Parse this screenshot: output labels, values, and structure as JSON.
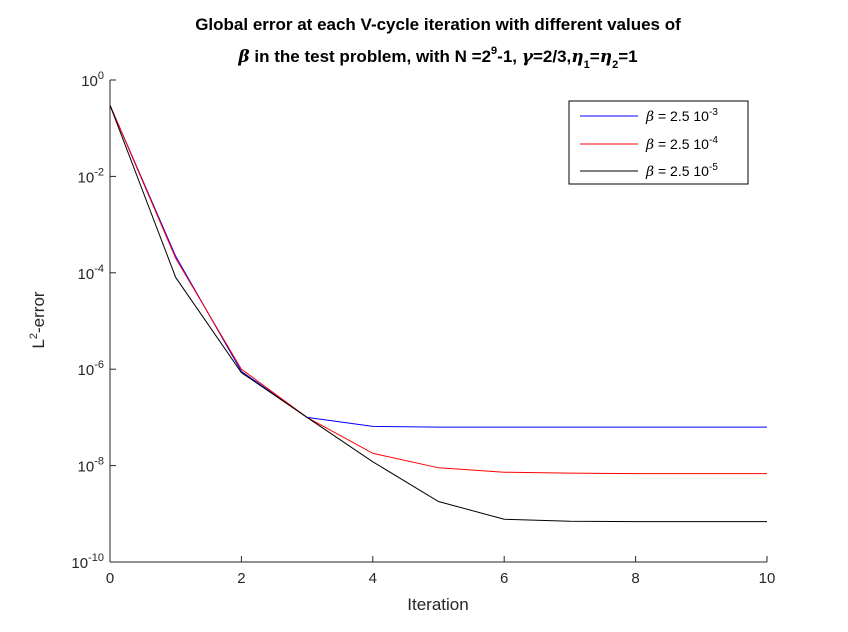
{
  "chart_data": {
    "type": "line",
    "title_line1": "Global error at each V-cycle iteration with different values of",
    "title_line2_parts": {
      "beta": "β",
      "a": " in the test problem, with N =2",
      "exp9": "9",
      "b": "-1, ",
      "gamma": "γ",
      "c": "=2/3,",
      "eta1": "η",
      "sub1": "1",
      "eq": "=",
      "eta2": "η",
      "sub2": "2",
      "d": "=1"
    },
    "xlabel": "Iteration",
    "ylabel_base": "L",
    "ylabel_sup": "2",
    "ylabel_rest": "-error",
    "xlim": [
      0,
      10
    ],
    "ylim": [
      1e-10,
      1
    ],
    "yscale": "log",
    "xticks": [
      0,
      2,
      4,
      6,
      8,
      10
    ],
    "xtick_labels": [
      "0",
      "2",
      "4",
      "6",
      "8",
      "10"
    ],
    "yticks": [
      1,
      0.01,
      0.0001,
      1e-06,
      1e-08,
      1e-10
    ],
    "ytick_base": "10",
    "ytick_exponents": [
      "0",
      "-2",
      "-4",
      "-6",
      "-8",
      "-10"
    ],
    "grid": false,
    "legend_position": "top-right",
    "x": [
      0,
      1,
      2,
      3,
      4,
      5,
      6,
      7,
      8,
      9,
      10
    ],
    "series": [
      {
        "name": "β = 2.5 10^-3",
        "label_beta": "β",
        "label_text": " = 2.5 10",
        "label_exp": "-3",
        "color": "#0000ff",
        "values": [
          0.3,
          0.00022,
          9e-07,
          1e-07,
          6.5e-08,
          6.3e-08,
          6.3e-08,
          6.3e-08,
          6.3e-08,
          6.3e-08,
          6.3e-08
        ]
      },
      {
        "name": "β = 2.5 10^-4",
        "label_beta": "β",
        "label_text": " = 2.5 10",
        "label_exp": "-4",
        "color": "#ff0000",
        "values": [
          0.3,
          0.0002,
          1e-06,
          1e-07,
          1.8e-08,
          9e-09,
          7.3e-09,
          7e-09,
          6.8e-09,
          6.8e-09,
          6.8e-09
        ]
      },
      {
        "name": "β = 2.5 10^-5",
        "label_beta": "β",
        "label_text": " = 2.5 10",
        "label_exp": "-5",
        "color": "#000000",
        "values": [
          0.3,
          8e-05,
          8.5e-07,
          1e-07,
          1.2e-08,
          1.8e-09,
          7.7e-10,
          7e-10,
          6.9e-10,
          6.9e-10,
          6.9e-10
        ]
      }
    ]
  }
}
